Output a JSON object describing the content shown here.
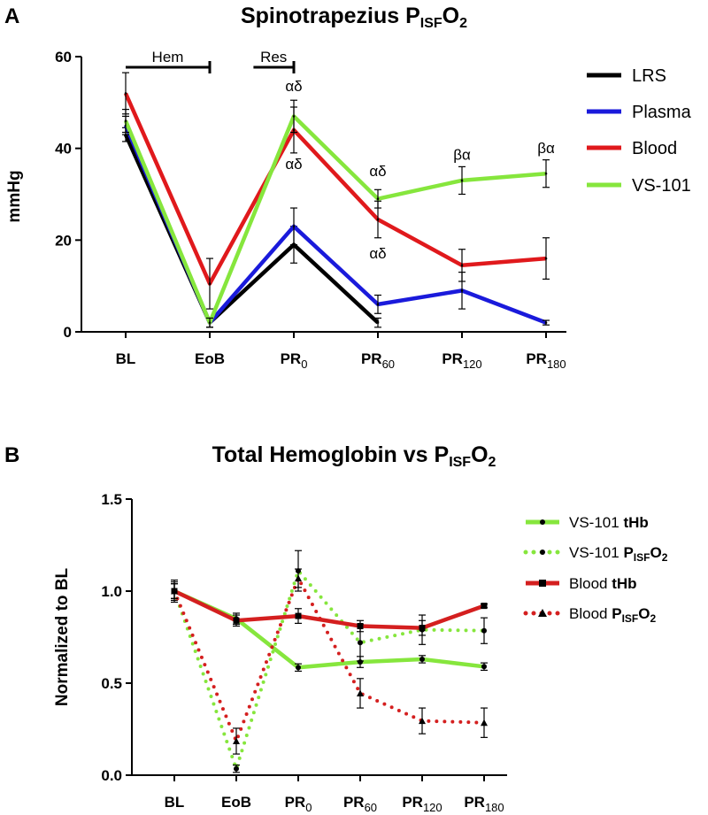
{
  "chart_data": [
    {
      "panel": "A",
      "type": "line",
      "title_main": "Spinotrapezius P",
      "title_sub": "ISF",
      "title_o": "O",
      "title_sub2": "2",
      "ylabel": "mmHg",
      "ylim": [
        0,
        60
      ],
      "yticks": [
        "0",
        "20",
        "40",
        "60"
      ],
      "categories": [
        {
          "base": "BL",
          "sub": ""
        },
        {
          "base": "EoB",
          "sub": ""
        },
        {
          "base": "PR",
          "sub": "0"
        },
        {
          "base": "PR",
          "sub": "60"
        },
        {
          "base": "PR",
          "sub": "120"
        },
        {
          "base": "PR",
          "sub": "180"
        }
      ],
      "series": [
        {
          "name": "LRS",
          "color": "#000000",
          "values": [
            43,
            2,
            19,
            2,
            null,
            null
          ],
          "err": [
            1.5,
            1,
            4,
            1,
            0,
            0
          ]
        },
        {
          "name": "Plasma",
          "color": "#1a1adb",
          "values": [
            45,
            2,
            23,
            6,
            9,
            2
          ],
          "err": [
            2,
            1,
            4,
            2,
            4,
            0.5
          ]
        },
        {
          "name": "Blood",
          "color": "#e0191c",
          "values": [
            52,
            10.5,
            44,
            24.5,
            14.5,
            16
          ],
          "err": [
            4.5,
            5.5,
            5,
            4,
            3.5,
            4.5
          ]
        },
        {
          "name": "VS-101",
          "color": "#86e63d",
          "values": [
            46,
            2,
            47,
            29,
            33,
            34.5
          ],
          "err": [
            2.5,
            1,
            3.5,
            2,
            3,
            3
          ]
        }
      ],
      "brackets": [
        {
          "label": "Hem",
          "from": 0,
          "to": 1
        },
        {
          "label": "Res",
          "from": 1.52,
          "to": 2
        }
      ],
      "annotations": [
        {
          "text": "αδ",
          "cat": 2,
          "y": 52.5
        },
        {
          "text": "αδ",
          "cat": 2,
          "y": 35.5
        },
        {
          "text": "αδ",
          "cat": 3,
          "y": 34
        },
        {
          "text": "αδ",
          "cat": 3,
          "y": 16
        },
        {
          "text": "βα",
          "cat": 4,
          "y": 37.5
        },
        {
          "text": "βα",
          "cat": 5,
          "y": 39
        }
      ]
    },
    {
      "panel": "B",
      "type": "line",
      "title_main": "Total Hemoglobin vs P",
      "title_sub": "ISF",
      "title_o": "O",
      "title_sub2": "2",
      "ylabel": "Normalized to  BL",
      "ylim": [
        0,
        1.5
      ],
      "yticks": [
        "0.0",
        "0.5",
        "1.0",
        "1.5"
      ],
      "categories": [
        {
          "base": "BL",
          "sub": ""
        },
        {
          "base": "EoB",
          "sub": ""
        },
        {
          "base": "PR",
          "sub": "0"
        },
        {
          "base": "PR",
          "sub": "60"
        },
        {
          "base": "PR",
          "sub": "120"
        },
        {
          "base": "PR",
          "sub": "180"
        }
      ],
      "series": [
        {
          "name": "VS-101",
          "bold": "tHb",
          "sub": "",
          "tail": "",
          "color": "#86e63d",
          "style": "solid",
          "marker": "circle",
          "values": [
            1.0,
            0.85,
            0.585,
            0.615,
            0.63,
            0.59
          ],
          "err": [
            0.04,
            0.03,
            0.02,
            0.03,
            0.02,
            0.02
          ]
        },
        {
          "name": "VS-101",
          "bold": "P",
          "sub": "ISF",
          "tail": "O2",
          "color": "#86e63d",
          "style": "dotted",
          "marker": "circle",
          "values": [
            1.0,
            0.035,
            1.11,
            0.72,
            0.79,
            0.785
          ],
          "err": [
            0.05,
            0.02,
            0.11,
            0.1,
            0.08,
            0.07
          ]
        },
        {
          "name": "Blood",
          "bold": "tHb",
          "sub": "",
          "tail": "",
          "color": "#d41f1f",
          "style": "solid",
          "marker": "square",
          "values": [
            1.0,
            0.84,
            0.865,
            0.81,
            0.8,
            0.92
          ],
          "err": [
            0.06,
            0.03,
            0.04,
            0.03,
            0.04,
            0.01
          ]
        },
        {
          "name": "Blood",
          "bold": "P",
          "sub": "ISF",
          "tail": "O2",
          "color": "#d41f1f",
          "style": "dotted",
          "marker": "triangle",
          "values": [
            1.0,
            0.185,
            1.07,
            0.445,
            0.295,
            0.285
          ],
          "err": [
            0.04,
            0.07,
            0.05,
            0.08,
            0.07,
            0.08
          ]
        }
      ]
    }
  ]
}
